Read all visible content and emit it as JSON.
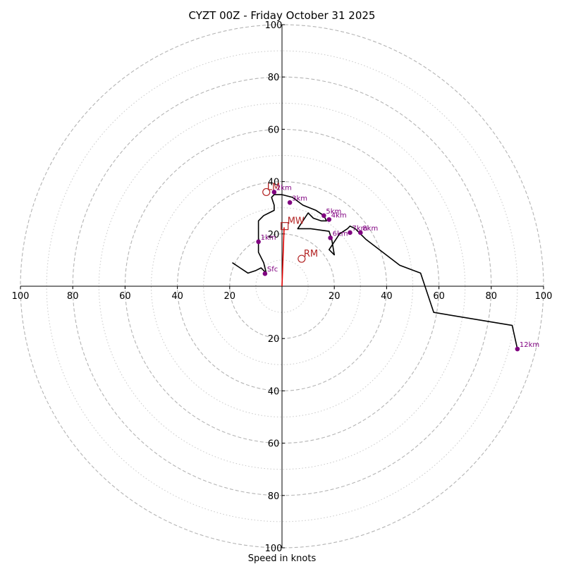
{
  "chart_data": {
    "type": "line",
    "title": "CYZT 00Z - Friday October 31 2025",
    "xlabel": "Speed in knots",
    "ylabel": "",
    "range": [
      -100,
      100
    ],
    "grid": true,
    "tick_values_x": [
      -100,
      -80,
      -60,
      -40,
      -20,
      20,
      40,
      60,
      80,
      100
    ],
    "tick_labels_x": [
      "100",
      "80",
      "60",
      "40",
      "20",
      "20",
      "40",
      "60",
      "80",
      "100"
    ],
    "tick_values_y": [
      100,
      80,
      60,
      40,
      20,
      -20,
      -40,
      -60,
      -80,
      -100
    ],
    "tick_labels_y": [
      "100",
      "80",
      "60",
      "40",
      "20",
      "20",
      "40",
      "60",
      "80",
      "100"
    ],
    "ring_radii_dashed": [
      20,
      40,
      60,
      80,
      100
    ],
    "ring_radii_dotted": [
      10,
      30,
      50,
      70,
      90
    ],
    "hodograph": {
      "color": "#000000",
      "u": [
        -19,
        -16,
        -13,
        -10,
        -8,
        -6,
        -7,
        -9,
        -9,
        -9,
        -7,
        -3,
        -3,
        -4,
        -3,
        0,
        4,
        8,
        13,
        16,
        17,
        15,
        12,
        10,
        6,
        11,
        18,
        19,
        20,
        18,
        22,
        25,
        26,
        28,
        30,
        32,
        45,
        53,
        58,
        88,
        90
      ],
      "v": [
        9,
        7,
        5,
        6,
        7,
        5,
        9,
        13,
        17,
        25,
        27,
        29,
        31,
        34,
        35,
        35,
        34,
        31,
        29,
        27,
        25,
        25,
        26,
        28,
        22,
        22,
        21,
        18,
        12,
        14,
        20,
        22,
        23,
        22,
        20,
        18,
        8,
        5,
        -10,
        -15,
        -24
      ]
    },
    "height_markers": [
      {
        "label": "Sfc",
        "u": -6.5,
        "v": 4.8
      },
      {
        "label": "1km",
        "u": -9,
        "v": 17
      },
      {
        "label": "2km",
        "u": -3,
        "v": 36
      },
      {
        "label": "3km",
        "u": 3,
        "v": 32
      },
      {
        "label": "4km",
        "u": 18,
        "v": 25.5
      },
      {
        "label": "5km",
        "u": 16,
        "v": 27
      },
      {
        "label": "6km",
        "u": 18.5,
        "v": 18.5
      },
      {
        "label": "7km",
        "u": 26,
        "v": 20.5
      },
      {
        "label": "8km",
        "u": 30,
        "v": 20.5
      },
      {
        "label": "12km",
        "u": 90,
        "v": -24
      }
    ],
    "storm_motion": {
      "color": "#b22222",
      "mean_wind": {
        "label": "MW",
        "u": 1,
        "v": 23
      },
      "right_mover": {
        "label": "RM",
        "u": 7.5,
        "v": 10.5
      },
      "left_mover": {
        "label": "LM",
        "u": -6,
        "v": 36
      },
      "vector": {
        "u": 0.8,
        "v": 22.5
      }
    }
  }
}
